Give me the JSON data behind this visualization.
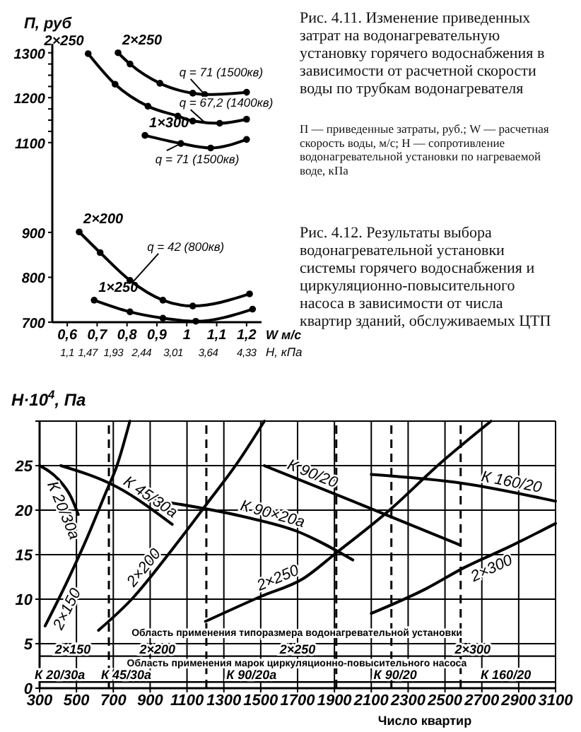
{
  "chart_data": [
    {
      "type": "line",
      "xlabel": "W м/с",
      "ylabel": "П, руб",
      "x2label": "Н, кПа",
      "xlim": [
        0.55,
        1.25
      ],
      "xticks": [
        {
          "value": 0.6,
          "label": "0,6"
        },
        {
          "value": 0.7,
          "label": "0,7"
        },
        {
          "value": 0.8,
          "label": "0,8"
        },
        {
          "value": 0.9,
          "label": "0,9"
        },
        {
          "value": 1,
          "label": "1"
        },
        {
          "value": 1.1,
          "label": "1,1"
        },
        {
          "value": 1.2,
          "label": "1,2"
        }
      ],
      "x2lim": [
        0.83,
        4.6
      ],
      "x2ticks": [
        {
          "value": 1.1,
          "label": "1,1"
        },
        {
          "value": 1.47,
          "label": "1,47"
        },
        {
          "value": 1.93,
          "label": "1,93"
        },
        {
          "value": 2.44,
          "label": "2,44"
        },
        {
          "value": 3.01,
          "label": "3,01"
        },
        {
          "value": 3.64,
          "label": "3,64"
        },
        {
          "value": 4.33,
          "label": "4,33"
        }
      ],
      "ylim": [
        700,
        1320
      ],
      "yticks": [
        700,
        800,
        900,
        1100,
        {
          "value": 1125,
          "label": null
        },
        {
          "value": 1150,
          "label": null
        },
        {
          "value": 1175,
          "label": null
        },
        1200,
        {
          "value": 1225,
          "label": null
        },
        {
          "value": 1250,
          "label": null
        },
        {
          "value": 1275,
          "label": null
        },
        1300
      ],
      "marker": "circle",
      "series": [
        {
          "name": "2×250",
          "color": "#000000",
          "x": [
            0.77,
            0.81,
            0.91,
            1.02,
            1.06,
            1.2
          ],
          "values": [
            1300,
            1275,
            1232,
            1210,
            1207,
            1212
          ]
        },
        {
          "name": "2×250",
          "color": "#000000",
          "x": [
            0.67,
            0.76,
            0.87,
            0.97,
            1.02,
            1.11,
            1.2
          ],
          "values": [
            1298,
            1230,
            1181,
            1159,
            1148,
            1143,
            1152
          ]
        },
        {
          "name": "1×300",
          "color": "#000000",
          "x": [
            0.86,
            0.98,
            1.08,
            1.2
          ],
          "values": [
            1116,
            1098,
            1088,
            1107
          ]
        },
        {
          "name": "2×200",
          "color": "#000000",
          "x": [
            0.64,
            0.71,
            0.81,
            0.92,
            1.02,
            1.21
          ],
          "values": [
            901,
            855,
            793,
            749,
            736,
            763
          ]
        },
        {
          "name": "1×250",
          "color": "#000000",
          "x": [
            0.69,
            0.81,
            0.92,
            1.03,
            1.22
          ],
          "values": [
            749,
            723,
            709,
            702,
            729
          ]
        }
      ],
      "annotations": [
        "Рис. 4.11. Изменение приведенных затрат на водонагревательную установку горячего водоснабжения в зависимости от расчетной скорости воды по трубкам водонагревателя",
        "П — приведенные затраты, руб.; W — расчетная скорость воды, м/с; H — сопротивление водонагревательной установки по нагреваемой воде, кПа",
        {
          "text": "q = 71 (1500кв)",
          "x": 1.06,
          "y": 1207
        },
        {
          "text": "q = 67,2 (1400кв)",
          "x": 1.06,
          "y": 1145
        },
        {
          "text": "q = 71 (1500кв)",
          "x": 0.98,
          "y": 1098
        },
        {
          "text": "q = 42 (800кв)",
          "x": 0.82,
          "y": 790
        }
      ]
    },
    {
      "type": "line",
      "title": "Рис. 4.12. Результаты выбора водонагревательной установки системы горячего водоснабжения и циркуляционно-повысительного насоса в зависимости от числа квартир зданий, обслуживаемых ЦТП",
      "xlabel": "Число квартир",
      "ylabel": "Н·10$^{4}$, Па",
      "xlim": [
        300,
        3100
      ],
      "xticks": [
        300,
        500,
        700,
        900,
        1100,
        1300,
        1500,
        1700,
        1900,
        2100,
        2300,
        2500,
        2700,
        2900,
        3100
      ],
      "ylim": [
        0,
        30
      ],
      "yticks": [
        0,
        5,
        10,
        15,
        20,
        25,
        {
          "value": 30,
          "label": null
        }
      ],
      "grid": true,
      "series": [
        {
          "name": "2×150",
          "color": "#000000",
          "x": [
            330,
            450,
            560,
            660,
            720,
            790
          ],
          "values": [
            7,
            12,
            17,
            22,
            25,
            30
          ]
        },
        {
          "name": "К 20/30а",
          "color": "#000000",
          "x": [
            300,
            400,
            470,
            510
          ],
          "values": [
            25,
            23.5,
            21.5,
            19.5
          ]
        },
        {
          "name": "К 45/30а",
          "color": "#000000",
          "x": [
            415,
            720,
            1020
          ],
          "values": [
            25,
            22.6,
            18.4
          ]
        },
        {
          "name": "2×200",
          "color": "#000000",
          "x": [
            620,
            800,
            1020,
            1200,
            1380,
            1520
          ],
          "values": [
            6.5,
            10,
            15.6,
            20.5,
            25.5,
            30
          ]
        },
        {
          "name": "К 90×20а",
          "color": "#000000",
          "x": [
            930,
            1400,
            1700,
            2000
          ],
          "values": [
            21.1,
            19.3,
            17.6,
            14.4
          ]
        },
        {
          "name": "К 90/20",
          "color": "#000000",
          "x": [
            1520,
            2000,
            2580
          ],
          "values": [
            25,
            21,
            16.1
          ]
        },
        {
          "name": "2×250",
          "color": "#000000",
          "x": [
            1200,
            1500,
            1730,
            1910,
            2210,
            2460,
            2750
          ],
          "values": [
            7.5,
            10.3,
            12.3,
            15.2,
            20.2,
            25,
            30
          ]
        },
        {
          "name": "К 160/20",
          "color": "#000000",
          "x": [
            2100,
            2600,
            3100
          ],
          "values": [
            24,
            23,
            21
          ]
        },
        {
          "name": "2×300",
          "color": "#000000",
          "x": [
            2100,
            2400,
            2600,
            2850,
            3100
          ],
          "values": [
            8.4,
            11.2,
            13.5,
            15.9,
            18.5
          ]
        }
      ],
      "ref_lines": [
        {
          "axis": "x",
          "value": 676,
          "line_style": "dashed"
        },
        {
          "axis": "x",
          "value": 1205,
          "line_style": "dashed"
        },
        {
          "axis": "x",
          "value": 1910,
          "line_style": "dashed"
        },
        {
          "axis": "x",
          "value": 2209,
          "line_style": "dashed"
        },
        {
          "axis": "x",
          "value": 2585,
          "line_style": "dashed"
        },
        {
          "axis": "y",
          "value": 3.6,
          "line_style": "solid"
        },
        {
          "axis": "y",
          "value": 0.7,
          "line_style": "solid"
        }
      ],
      "annotations": [
        "Область применения типоразмера водонагревательной установки",
        {
          "text": "2×150",
          "x": 480,
          "y": 3.6
        },
        {
          "text": "2×200",
          "x": 940,
          "y": 3.6
        },
        {
          "text": "2×250",
          "x": 1700,
          "y": 3.6
        },
        {
          "text": "2×300",
          "x": 2650,
          "y": 3.6
        },
        "Область применения марок циркуляционно-повысительного насоса",
        {
          "text": "К 20/30а",
          "x": 410,
          "y": 0.7
        },
        {
          "text": "К 45/30а",
          "x": 770,
          "y": 0.7
        },
        {
          "text": "К 90/20а",
          "x": 1450,
          "y": 0.7
        },
        {
          "text": "К 90/20",
          "x": 2230,
          "y": 0.7
        },
        {
          "text": "К 160/20",
          "x": 2830,
          "y": 0.7
        }
      ]
    }
  ]
}
